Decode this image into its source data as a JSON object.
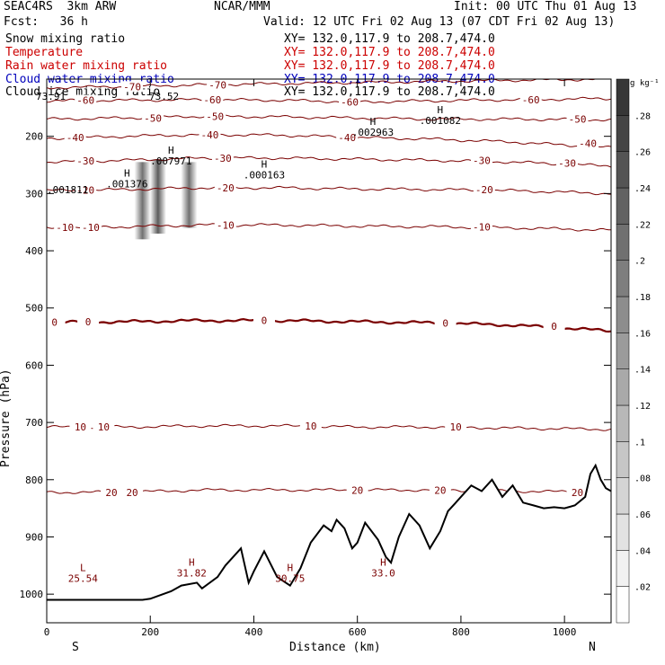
{
  "header": {
    "model": "SEAC4RS  3km ARW",
    "org": "NCAR/MMM",
    "init": "Init: 00 UTC Thu 01 Aug 13",
    "fcst": "Fcst:   36 h",
    "valid": "Valid: 12 UTC Fri 02 Aug 13 (07 CDT Fri 02 Aug 13)"
  },
  "fields": [
    {
      "name": "Snow mixing ratio",
      "xy": "XY= 132.0,117.9 to 208.7,474.0",
      "color": "#000000"
    },
    {
      "name": "Temperature",
      "xy": "XY= 132.0,117.9 to 208.7,474.0",
      "color": "#cc0000"
    },
    {
      "name": "Rain water mixing ratio",
      "xy": "XY= 132.0,117.9 to 208.7,474.0",
      "color": "#cc0000"
    },
    {
      "name": "Cloud water mixing ratio",
      "xy": "XY= 132.0,117.9 to 208.7,474.0",
      "color": "#0000bb"
    },
    {
      "name": "Cloud ice mixing ratio",
      "xy": "XY= 132.0,117.9 to 208.7,474.0",
      "color": "#000000"
    }
  ],
  "chart_data": {
    "type": "cross-section",
    "xlabel": "Distance (km)",
    "ylabel": "Pressure (hPa)",
    "xlim": [
      0,
      1090
    ],
    "ylim": [
      1050,
      100
    ],
    "xticks": [
      0,
      200,
      400,
      600,
      800,
      1000
    ],
    "yticks": [
      200,
      300,
      400,
      500,
      600,
      700,
      800,
      900,
      1000
    ],
    "left_end": "S",
    "right_end": "N",
    "colorbar": {
      "unit": "g kg⁻¹",
      "ticks": [
        ".02",
        ".04",
        ".06",
        ".08",
        ".1",
        ".12",
        ".14",
        ".16",
        ".18",
        ".2",
        ".22",
        ".24",
        ".26",
        ".28"
      ],
      "levels": [
        0.02,
        0.04,
        0.06,
        0.08,
        0.1,
        0.12,
        0.14,
        0.16,
        0.18,
        0.2,
        0.22,
        0.24,
        0.26,
        0.28,
        0.3
      ]
    },
    "isotherms": [
      {
        "t": -70,
        "p": [
          [
            0,
            115
          ],
          [
            150,
            113
          ],
          [
            300,
            110
          ],
          [
            450,
            108
          ],
          [
            600,
            106
          ],
          [
            750,
            104
          ],
          [
            900,
            102
          ],
          [
            1090,
            100
          ]
        ],
        "labels": [
          [
            165,
            113
          ],
          [
            330,
            110
          ]
        ]
      },
      {
        "t": -60,
        "p": [
          [
            0,
            138
          ],
          [
            150,
            137
          ],
          [
            300,
            136
          ],
          [
            450,
            137
          ],
          [
            600,
            140
          ],
          [
            750,
            138
          ],
          [
            900,
            136
          ],
          [
            1090,
            134
          ]
        ],
        "labels": [
          [
            75,
            137
          ],
          [
            320,
            136
          ],
          [
            585,
            140
          ],
          [
            935,
            136
          ]
        ]
      },
      {
        "t": -50,
        "p": [
          [
            0,
            170
          ],
          [
            150,
            168
          ],
          [
            300,
            165
          ],
          [
            450,
            166
          ],
          [
            600,
            168
          ],
          [
            750,
            170
          ],
          [
            900,
            170
          ],
          [
            1090,
            171
          ]
        ],
        "labels": [
          [
            205,
            168
          ],
          [
            325,
            165
          ],
          [
            1025,
            170
          ]
        ]
      },
      {
        "t": -40,
        "p": [
          [
            0,
            204
          ],
          [
            150,
            200
          ],
          [
            300,
            197
          ],
          [
            450,
            198
          ],
          [
            600,
            202
          ],
          [
            750,
            205
          ],
          [
            900,
            210
          ],
          [
            1090,
            220
          ]
        ],
        "labels": [
          [
            55,
            202
          ],
          [
            315,
            197
          ],
          [
            580,
            202
          ],
          [
            1045,
            212
          ]
        ]
      },
      {
        "t": -30,
        "p": [
          [
            0,
            245
          ],
          [
            150,
            242
          ],
          [
            300,
            238
          ],
          [
            450,
            238
          ],
          [
            600,
            240
          ],
          [
            750,
            242
          ],
          [
            900,
            245
          ],
          [
            1090,
            252
          ]
        ],
        "labels": [
          [
            75,
            243
          ],
          [
            340,
            238
          ],
          [
            840,
            242
          ],
          [
            1005,
            247
          ]
        ]
      },
      {
        "t": -20,
        "p": [
          [
            0,
            295
          ],
          [
            150,
            293
          ],
          [
            300,
            290
          ],
          [
            450,
            290
          ],
          [
            600,
            292
          ],
          [
            750,
            293
          ],
          [
            900,
            295
          ],
          [
            1090,
            300
          ]
        ],
        "labels": [
          [
            75,
            294
          ],
          [
            345,
            290
          ],
          [
            845,
            293
          ]
        ]
      },
      {
        "t": -10,
        "p": [
          [
            0,
            360
          ],
          [
            150,
            358
          ],
          [
            300,
            355
          ],
          [
            450,
            355
          ],
          [
            600,
            357
          ],
          [
            750,
            358
          ],
          [
            900,
            360
          ],
          [
            1090,
            364
          ]
        ],
        "labels": [
          [
            35,
            359
          ],
          [
            85,
            359
          ],
          [
            345,
            355
          ],
          [
            840,
            358
          ]
        ]
      },
      {
        "t": 0,
        "p": [
          [
            0,
            525
          ],
          [
            150,
            524
          ],
          [
            300,
            522
          ],
          [
            450,
            522
          ],
          [
            600,
            524
          ],
          [
            750,
            526
          ],
          [
            900,
            530
          ],
          [
            1090,
            540
          ]
        ],
        "labels": [
          [
            15,
            525
          ],
          [
            80,
            524
          ],
          [
            420,
            522
          ],
          [
            770,
            526
          ],
          [
            980,
            532
          ]
        ],
        "bold": true
      },
      {
        "t": 10,
        "p": [
          [
            0,
            708
          ],
          [
            150,
            708
          ],
          [
            300,
            706
          ],
          [
            450,
            706
          ],
          [
            600,
            708
          ],
          [
            750,
            708
          ],
          [
            900,
            710
          ],
          [
            1090,
            712
          ]
        ],
        "labels": [
          [
            65,
            708
          ],
          [
            110,
            708
          ],
          [
            510,
            706
          ],
          [
            790,
            708
          ]
        ]
      },
      {
        "t": 20,
        "p": [
          [
            0,
            822
          ],
          [
            150,
            822
          ],
          [
            300,
            818
          ],
          [
            450,
            818
          ],
          [
            600,
            818
          ],
          [
            750,
            818
          ],
          [
            900,
            820
          ],
          [
            1090,
            822
          ]
        ],
        "labels": [
          [
            125,
            822
          ],
          [
            165,
            822
          ],
          [
            600,
            818
          ],
          [
            760,
            818
          ],
          [
            1025,
            822
          ]
        ]
      }
    ],
    "highs_lows": [
      {
        "kind": "H",
        "label": ".001376",
        "x": 155,
        "p": 270
      },
      {
        "kind": "H",
        "label": ".007971",
        "x": 240,
        "p": 230
      },
      {
        "kind": "H",
        "label": ".000163",
        "x": 420,
        "p": 255
      },
      {
        "kind": "H",
        "label": ".002963",
        "x": 630,
        "p": 180
      },
      {
        "kind": "H",
        "label": ".001082",
        "x": 760,
        "p": 160
      },
      {
        "kind": "H",
        "label": "31.82",
        "x": 280,
        "p": 950
      },
      {
        "kind": "H",
        "label": "30.75",
        "x": 470,
        "p": 960
      },
      {
        "kind": "H",
        "label": "33.0",
        "x": 650,
        "p": 950
      },
      {
        "kind": "L",
        "label": "25.54",
        "x": 70,
        "p": 960
      }
    ],
    "extra_labels": [
      ".001811",
      "73.52",
      "73.91"
    ],
    "snow_columns": [
      {
        "x": 185,
        "p_top": 245,
        "p_bottom": 380,
        "max": 0.14
      },
      {
        "x": 215,
        "p_top": 240,
        "p_bottom": 370,
        "max": 0.16
      },
      {
        "x": 275,
        "p_top": 245,
        "p_bottom": 360,
        "max": 0.14
      }
    ],
    "terrain": {
      "x": [
        0,
        185,
        200,
        240,
        260,
        290,
        300,
        330,
        345,
        360,
        375,
        390,
        400,
        420,
        445,
        470,
        490,
        510,
        535,
        550,
        560,
        575,
        590,
        600,
        615,
        640,
        655,
        665,
        680,
        700,
        720,
        740,
        760,
        775,
        790,
        800,
        820,
        840,
        860,
        880,
        900,
        920,
        940,
        960,
        980,
        1000,
        1020,
        1040,
        1050,
        1060,
        1070,
        1080,
        1090
      ],
      "p": [
        1010,
        1010,
        1008,
        995,
        985,
        980,
        990,
        970,
        950,
        935,
        920,
        980,
        960,
        925,
        970,
        985,
        955,
        910,
        880,
        890,
        870,
        885,
        920,
        910,
        875,
        905,
        935,
        945,
        900,
        860,
        880,
        920,
        890,
        855,
        840,
        830,
        810,
        820,
        800,
        830,
        810,
        840,
        845,
        850,
        848,
        850,
        845,
        830,
        790,
        775,
        800,
        815,
        820
      ]
    }
  }
}
